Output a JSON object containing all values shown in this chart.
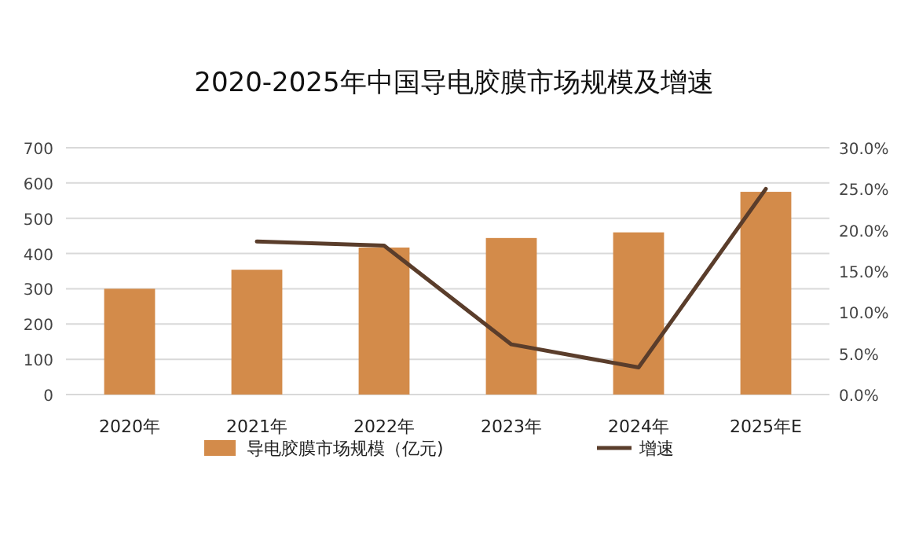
{
  "chart_data": {
    "type": "bar",
    "title": "2020-2025年中国导电胶膜市场规模及增速",
    "categories": [
      "2020年",
      "2021年",
      "2022年",
      "2023年",
      "2024年",
      "2025年E"
    ],
    "series": [
      {
        "name": "导电胶膜市场规模（亿元)",
        "color": "#d38b4a",
        "values": [
          300,
          354,
          417,
          444,
          460,
          575
        ]
      },
      {
        "name": "增速",
        "type": "line",
        "axis": "y2",
        "color": "#5a3d2b",
        "values": [
          null,
          18.6,
          18.1,
          6.1,
          3.3,
          25.0
        ]
      }
    ],
    "ylim": [
      0,
      700
    ],
    "yticks": [
      0,
      100,
      200,
      300,
      400,
      500,
      600,
      700
    ],
    "y2lim": [
      0,
      30
    ],
    "y2ticks": [
      {
        "value": 0,
        "label": "0.0%"
      },
      {
        "value": 5,
        "label": "5.0%"
      },
      {
        "value": 10,
        "label": "10.0%"
      },
      {
        "value": 15,
        "label": "15.0%"
      },
      {
        "value": 20,
        "label": "20.0%"
      },
      {
        "value": 25,
        "label": "25.0%"
      },
      {
        "value": 30,
        "label": "30.0%"
      }
    ],
    "grid": "y",
    "legend": "bottom"
  }
}
